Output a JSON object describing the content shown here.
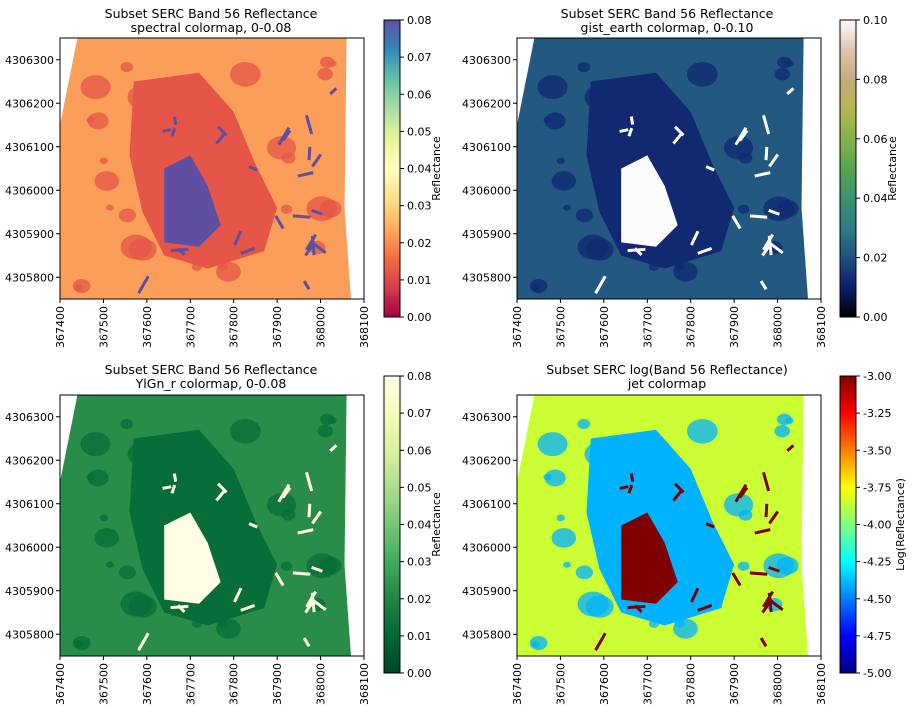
{
  "chart_data": [
    {
      "type": "heatmap",
      "title": [
        "Subset SERC Band 56 Reflectance",
        "spectral colormap, 0-0.08"
      ],
      "xlabel": "",
      "ylabel": "",
      "xlim": [
        367400,
        368100
      ],
      "ylim": [
        4305750,
        4306350
      ],
      "x_ticks": [
        367400,
        367500,
        367600,
        367700,
        367800,
        367900,
        368000,
        368100
      ],
      "y_ticks": [
        4305800,
        4305900,
        4306000,
        4306100,
        4306200,
        4306300
      ],
      "colormap": "spectral",
      "colorbar": {
        "label": "Reflectance",
        "min": 0,
        "max": 0.08,
        "ticks": [
          "0.00",
          "0.01",
          "0.02",
          "0.03",
          "0.04",
          "0.05",
          "0.06",
          "0.07",
          "0.08"
        ]
      },
      "colors": [
        "#9e0142",
        "#d53e4f",
        "#f46d43",
        "#fdae61",
        "#fee08b",
        "#ffffbf",
        "#e6f598",
        "#abdda4",
        "#66c2a5",
        "#3288bd",
        "#5e4fa2"
      ],
      "water_value": 0.022,
      "land_value": 0.08,
      "vegetation_value": 0.012
    },
    {
      "type": "heatmap",
      "title": [
        "Subset SERC Band 56 Reflectance",
        "gist_earth colormap, 0-0.10"
      ],
      "xlabel": "",
      "ylabel": "",
      "xlim": [
        367400,
        368100
      ],
      "ylim": [
        4305750,
        4306350
      ],
      "x_ticks": [
        367400,
        367500,
        367600,
        367700,
        367800,
        367900,
        368000,
        368100
      ],
      "y_ticks": [
        4305800,
        4305900,
        4306000,
        4306100,
        4306200,
        4306300
      ],
      "colormap": "gist_earth",
      "colorbar": {
        "label": "Reflectance",
        "min": 0,
        "max": 0.1,
        "ticks": [
          "0.00",
          "0.02",
          "0.04",
          "0.06",
          "0.08",
          "0.10"
        ]
      },
      "colors": [
        "#000000",
        "#0c1f6e",
        "#20507e",
        "#2f7b86",
        "#3e9170",
        "#57a450",
        "#86b04a",
        "#b3b852",
        "#c8ab7f",
        "#e0c6b2",
        "#fdfbfb"
      ],
      "water_value": 0.022,
      "land_value": 0.1,
      "vegetation_value": 0.012
    },
    {
      "type": "heatmap",
      "title": [
        "Subset SERC Band 56 Reflectance",
        "YlGn_r colormap, 0-0.08"
      ],
      "xlabel": "",
      "ylabel": "",
      "xlim": [
        367400,
        368100
      ],
      "ylim": [
        4305750,
        4306350
      ],
      "x_ticks": [
        367400,
        367500,
        367600,
        367700,
        367800,
        367900,
        368000,
        368100
      ],
      "y_ticks": [
        4305800,
        4305900,
        4306000,
        4306100,
        4306200,
        4306300
      ],
      "colormap": "YlGn_r",
      "colorbar": {
        "label": "Reflectance",
        "min": 0,
        "max": 0.08,
        "ticks": [
          "0.00",
          "0.01",
          "0.02",
          "0.03",
          "0.04",
          "0.05",
          "0.06",
          "0.07",
          "0.08"
        ]
      },
      "colors": [
        "#004529",
        "#006837",
        "#238443",
        "#41ab5d",
        "#78c679",
        "#addd8e",
        "#d9f0a3",
        "#f7fcb9",
        "#ffffe5"
      ],
      "water_value": 0.022,
      "land_value": 0.08,
      "vegetation_value": 0.012
    },
    {
      "type": "heatmap",
      "title": [
        "Subset SERC log(Band 56 Reflectance)",
        "jet colormap"
      ],
      "xlabel": "",
      "ylabel": "",
      "xlim": [
        367400,
        368100
      ],
      "ylim": [
        4305750,
        4306350
      ],
      "x_ticks": [
        367400,
        367500,
        367600,
        367700,
        367800,
        367900,
        368000,
        368100
      ],
      "y_ticks": [
        4305800,
        4305900,
        4306000,
        4306100,
        4306200,
        4306300
      ],
      "colormap": "jet",
      "colorbar": {
        "label": "Log(Reflectance)",
        "min": -5,
        "max": -3,
        "ticks": [
          "-5.00",
          "-4.75",
          "-4.50",
          "-4.25",
          "-4.00",
          "-3.75",
          "-3.50",
          "-3.25",
          "-3.00"
        ]
      },
      "colors": [
        "#00007f",
        "#0000ff",
        "#007fff",
        "#00ffff",
        "#7fff7f",
        "#ffff00",
        "#ff7f00",
        "#ff0000",
        "#7f0000"
      ],
      "water_value": -3.85,
      "land_value": -3,
      "vegetation_value": -4.4
    }
  ]
}
